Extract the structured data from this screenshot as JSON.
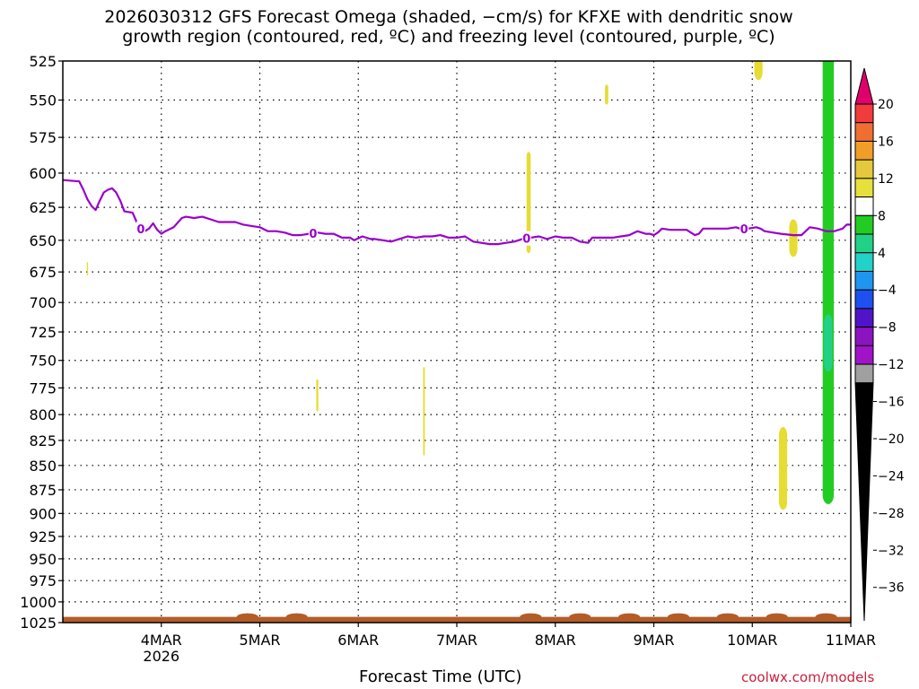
{
  "title_line1": "2026030312 GFS Forecast Omega (shaded, −cm/s) for KFXE with dendritic snow",
  "title_line2": "growth region (contoured, red, ºC) and freezing level (contoured, purple, ºC)",
  "credit": "coolwx.com/models",
  "chart_data": {
    "type": "area",
    "xlabel": "Forecast Time (UTC)",
    "ylabel": "",
    "y_scale": "log-pressure (hPa, inverted)",
    "ylim": [
      1025,
      525
    ],
    "yticks": [
      525,
      550,
      575,
      600,
      625,
      650,
      675,
      700,
      725,
      750,
      775,
      800,
      825,
      850,
      875,
      900,
      925,
      950,
      975,
      1000,
      1025
    ],
    "xlim_hours": [
      -12,
      180
    ],
    "xticks": [
      {
        "hour": 12,
        "label": "4MAR",
        "sublabel": "2026"
      },
      {
        "hour": 36,
        "label": "5MAR",
        "sublabel": ""
      },
      {
        "hour": 60,
        "label": "6MAR",
        "sublabel": ""
      },
      {
        "hour": 84,
        "label": "7MAR",
        "sublabel": ""
      },
      {
        "hour": 108,
        "label": "8MAR",
        "sublabel": ""
      },
      {
        "hour": 132,
        "label": "9MAR",
        "sublabel": ""
      },
      {
        "hour": 156,
        "label": "10MAR",
        "sublabel": ""
      },
      {
        "hour": 180,
        "label": "11MAR",
        "sublabel": ""
      }
    ],
    "grid": true,
    "freezing_level": {
      "label": "0",
      "color": "#9900cc",
      "points": [
        [
          -12,
          605
        ],
        [
          -8,
          606
        ],
        [
          -7,
          612
        ],
        [
          -6,
          619
        ],
        [
          -5,
          624
        ],
        [
          -4,
          627
        ],
        [
          -3,
          620
        ],
        [
          -2,
          614
        ],
        [
          -1,
          612
        ],
        [
          0,
          611
        ],
        [
          1,
          614
        ],
        [
          2,
          620
        ],
        [
          3,
          628
        ],
        [
          5,
          629
        ],
        [
          6,
          636
        ],
        [
          7,
          641
        ],
        [
          8,
          643
        ],
        [
          9,
          641
        ],
        [
          10,
          637
        ],
        [
          11,
          642
        ],
        [
          12,
          645
        ],
        [
          13,
          643
        ],
        [
          15,
          640
        ],
        [
          17,
          633
        ],
        [
          18,
          632
        ],
        [
          20,
          633
        ],
        [
          22,
          632
        ],
        [
          24,
          634
        ],
        [
          26,
          636
        ],
        [
          30,
          636
        ],
        [
          32,
          638
        ],
        [
          34,
          639
        ],
        [
          36,
          640
        ],
        [
          38,
          643
        ],
        [
          40,
          643
        ],
        [
          42,
          644
        ],
        [
          44,
          646
        ],
        [
          46,
          646
        ],
        [
          48,
          645
        ],
        [
          50,
          644
        ],
        [
          52,
          645
        ],
        [
          54,
          645
        ],
        [
          56,
          648
        ],
        [
          58,
          648
        ],
        [
          59,
          650
        ],
        [
          61,
          647
        ],
        [
          63,
          649
        ],
        [
          64,
          649
        ],
        [
          66,
          650
        ],
        [
          68,
          651
        ],
        [
          70,
          649
        ],
        [
          72,
          647
        ],
        [
          74,
          648
        ],
        [
          76,
          647
        ],
        [
          78,
          647
        ],
        [
          80,
          646
        ],
        [
          82,
          648
        ],
        [
          84,
          648
        ],
        [
          86,
          647
        ],
        [
          88,
          651
        ],
        [
          90,
          652
        ],
        [
          92,
          653
        ],
        [
          94,
          653
        ],
        [
          96,
          652
        ],
        [
          98,
          651
        ],
        [
          100,
          649
        ],
        [
          102,
          648
        ],
        [
          104,
          647
        ],
        [
          106,
          649
        ],
        [
          108,
          647
        ],
        [
          110,
          648
        ],
        [
          112,
          648
        ],
        [
          114,
          651
        ],
        [
          116,
          652
        ],
        [
          117,
          648
        ],
        [
          120,
          648
        ],
        [
          122,
          648
        ],
        [
          124,
          647
        ],
        [
          126,
          646
        ],
        [
          128,
          643
        ],
        [
          130,
          645
        ],
        [
          131,
          645
        ],
        [
          132,
          646
        ],
        [
          133,
          644
        ],
        [
          134,
          641
        ],
        [
          136,
          642
        ],
        [
          138,
          642
        ],
        [
          140,
          642
        ],
        [
          142,
          646
        ],
        [
          143,
          645
        ],
        [
          144,
          641
        ],
        [
          145,
          641
        ],
        [
          147,
          641
        ],
        [
          148,
          641
        ],
        [
          150,
          641
        ],
        [
          152,
          640
        ],
        [
          153,
          641
        ],
        [
          155,
          641
        ],
        [
          157,
          640
        ],
        [
          158,
          641
        ],
        [
          159,
          643
        ],
        [
          161,
          644
        ],
        [
          163,
          645
        ],
        [
          166,
          646
        ],
        [
          168,
          646
        ],
        [
          170,
          640
        ],
        [
          172,
          641
        ],
        [
          174,
          643
        ],
        [
          176,
          643
        ],
        [
          178,
          641
        ],
        [
          179,
          638
        ],
        [
          180,
          638
        ]
      ],
      "label_hours": [
        7,
        49,
        101,
        154
      ]
    },
    "omega_patches": [
      {
        "hour": 6.5,
        "p_top": 640,
        "p_bot": 644,
        "half_width": 0.15,
        "color": "#e6dc32"
      },
      {
        "hour": -6,
        "p_top": 667,
        "p_bot": 678,
        "half_width": 0.15,
        "color": "#e6dc32"
      },
      {
        "hour": 50,
        "p_top": 767,
        "p_bot": 797,
        "half_width": 0.25,
        "color": "#e6dc32"
      },
      {
        "hour": 76,
        "p_top": 756,
        "p_bot": 840,
        "half_width": 0.2,
        "color": "#e6dc32"
      },
      {
        "hour": 101.5,
        "p_top": 585,
        "p_bot": 660,
        "half_width": 0.5,
        "color": "#e6dc32"
      },
      {
        "hour": 120.5,
        "p_top": 540,
        "p_bot": 553,
        "half_width": 0.4,
        "color": "#e6dc32"
      },
      {
        "hour": 157.5,
        "p_top": 522,
        "p_bot": 537,
        "half_width": 1.0,
        "color": "#e6dc32"
      },
      {
        "hour": 163.5,
        "p_top": 812,
        "p_bot": 896,
        "half_width": 1.0,
        "color": "#e6dc32"
      },
      {
        "hour": 166,
        "p_top": 634,
        "p_bot": 663,
        "half_width": 1.0,
        "color": "#e6dc32"
      },
      {
        "hour": 174.5,
        "p_top": 520,
        "p_bot": 890,
        "half_width": 1.35,
        "color": "#22cc22"
      },
      {
        "hour": 174.5,
        "p_top": 710,
        "p_bot": 760,
        "half_width": 1.0,
        "color": "#22d088"
      }
    ],
    "terrain": {
      "color": "#b45c28",
      "p_top": 1018,
      "bumps_hours": [
        33,
        45,
        102,
        114,
        126,
        138,
        150,
        162,
        174
      ]
    },
    "colorbar": {
      "ticks": [
        "20",
        "16",
        "12",
        "8",
        "4",
        "−4",
        "−8",
        "−12",
        "−16",
        "−20",
        "−24",
        "−28",
        "−32",
        "−36"
      ],
      "colors": [
        "#e0006c",
        "#f03c3c",
        "#f06e32",
        "#f09e28",
        "#e6c83c",
        "#e6e03c",
        "#ffffff",
        "#22cc22",
        "#22d088",
        "#22d2c8",
        "#1e96f0",
        "#1e50f0",
        "#5014c8",
        "#8c14c0",
        "#a014c8",
        "#a0a0a0",
        "#000000"
      ]
    }
  }
}
